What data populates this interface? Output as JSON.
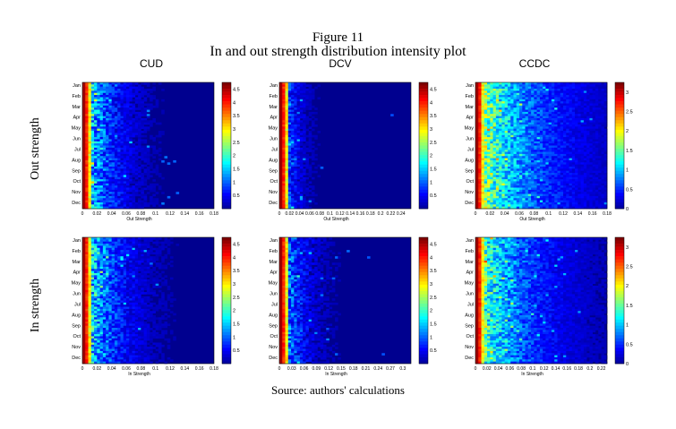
{
  "figure": {
    "number": "Figure 11",
    "caption": "In and out strength distribution intensity plot",
    "source": "Source: authors' calculations"
  },
  "columns": [
    "CUD",
    "DCV",
    "CCDC"
  ],
  "rows": [
    "Out strength",
    "In strength"
  ],
  "chart_data": [
    {
      "type": "heatmap",
      "title": "CUD",
      "row": "Out strength",
      "xlabel": "Out Strength",
      "y_categories": [
        "Jan",
        "Feb",
        "Mar",
        "Apr",
        "May",
        "Jun",
        "Jul",
        "Aug",
        "Sep",
        "Oct",
        "Nov",
        "Dec"
      ],
      "xlim": [
        0,
        0.18
      ],
      "x_ticks": [
        "0",
        "0.02",
        "0.04",
        "0.06",
        "0.08",
        "0.1",
        "0.12",
        "0.14",
        "0.16",
        "0.18"
      ],
      "colorbar": {
        "range": [
          0,
          4.75
        ],
        "ticks": [
          "4.5",
          "4",
          "3.5",
          "3",
          "2.5",
          "2",
          "1.5",
          "1",
          "0.5"
        ]
      },
      "colormap": [
        "#00008f",
        "#0000ff",
        "#0080ff",
        "#00ffff",
        "#80ff80",
        "#ffff00",
        "#ff8000",
        "#ff0000",
        "#800000"
      ]
    },
    {
      "type": "heatmap",
      "title": "DCV",
      "row": "Out strength",
      "xlabel": "Out Strength",
      "y_categories": [
        "Jan",
        "Feb",
        "Mar",
        "Apr",
        "May",
        "Jun",
        "Jul",
        "Aug",
        "Sep",
        "Oct",
        "Nov",
        "Dec"
      ],
      "xlim": [
        0,
        0.26
      ],
      "x_ticks": [
        "0",
        "0.02",
        "0.04",
        "0.06",
        "0.08",
        "0.1",
        "0.12",
        "0.14",
        "0.16",
        "0.18",
        "0.2",
        "0.22",
        "0.24"
      ],
      "colorbar": {
        "range": [
          0,
          4.75
        ],
        "ticks": [
          "4.5",
          "4",
          "3.5",
          "3",
          "2.5",
          "2",
          "1.5",
          "1",
          "0.5"
        ]
      },
      "colormap": [
        "#00008f",
        "#0000ff",
        "#0080ff",
        "#00ffff",
        "#80ff80",
        "#ffff00",
        "#ff8000",
        "#ff0000",
        "#800000"
      ]
    },
    {
      "type": "heatmap",
      "title": "CCDC",
      "row": "Out strength",
      "xlabel": "Out Strength",
      "y_categories": [
        "Jan",
        "Feb",
        "Mar",
        "Apr",
        "May",
        "Jun",
        "Jul",
        "Aug",
        "Sep",
        "Oct",
        "Nov",
        "Dec"
      ],
      "xlim": [
        0,
        0.18
      ],
      "x_ticks": [
        "0",
        "0.02",
        "0.04",
        "0.06",
        "0.08",
        "0.1",
        "0.12",
        "0.14",
        "0.16",
        "0.18"
      ],
      "colorbar": {
        "range": [
          0,
          3.25
        ],
        "ticks": [
          "3",
          "2.5",
          "2",
          "1.5",
          "1",
          "0.5",
          "0"
        ]
      },
      "colormap": [
        "#00008f",
        "#0000ff",
        "#0080ff",
        "#00ffff",
        "#80ff80",
        "#ffff00",
        "#ff8000",
        "#ff0000",
        "#800000"
      ]
    },
    {
      "type": "heatmap",
      "title": "CUD",
      "row": "In strength",
      "xlabel": "In Strength",
      "y_categories": [
        "Jan",
        "Feb",
        "Mar",
        "Apr",
        "May",
        "Jun",
        "Jul",
        "Aug",
        "Sep",
        "Oct",
        "Nov",
        "Dec"
      ],
      "xlim": [
        0,
        0.18
      ],
      "x_ticks": [
        "0",
        "0.02",
        "0.04",
        "0.06",
        "0.08",
        "0.1",
        "0.12",
        "0.14",
        "0.16",
        "0.18"
      ],
      "colorbar": {
        "range": [
          0,
          4.75
        ],
        "ticks": [
          "4.5",
          "4",
          "3.5",
          "3",
          "2.5",
          "2",
          "1.5",
          "1",
          "0.5"
        ]
      },
      "colormap": [
        "#00008f",
        "#0000ff",
        "#0080ff",
        "#00ffff",
        "#80ff80",
        "#ffff00",
        "#ff8000",
        "#ff0000",
        "#800000"
      ]
    },
    {
      "type": "heatmap",
      "title": "DCV",
      "row": "In strength",
      "xlabel": "In Strength",
      "y_categories": [
        "Jan",
        "Feb",
        "Mar",
        "Apr",
        "May",
        "Jun",
        "Jul",
        "Aug",
        "Sep",
        "Oct",
        "Nov",
        "Dec"
      ],
      "xlim": [
        0,
        0.32
      ],
      "x_ticks": [
        "0",
        "0.03",
        "0.06",
        "0.09",
        "0.12",
        "0.15",
        "0.18",
        "0.21",
        "0.24",
        "0.27",
        "0.3"
      ],
      "colorbar": {
        "range": [
          0,
          4.75
        ],
        "ticks": [
          "4.5",
          "4",
          "3.5",
          "3",
          "2.5",
          "2",
          "1.5",
          "1",
          "0.5"
        ]
      },
      "colormap": [
        "#00008f",
        "#0000ff",
        "#0080ff",
        "#00ffff",
        "#80ff80",
        "#ffff00",
        "#ff8000",
        "#ff0000",
        "#800000"
      ]
    },
    {
      "type": "heatmap",
      "title": "CCDC",
      "row": "In strength",
      "xlabel": "In Strength",
      "y_categories": [
        "Jan",
        "Feb",
        "Mar",
        "Apr",
        "May",
        "Jun",
        "Jul",
        "Aug",
        "Sep",
        "Oct",
        "Nov",
        "Dec"
      ],
      "xlim": [
        0,
        0.23
      ],
      "x_ticks": [
        "0",
        "0.02",
        "0.04",
        "0.06",
        "0.08",
        "0.1",
        "0.12",
        "0.14",
        "0.16",
        "0.18",
        "0.2",
        "0.22"
      ],
      "colorbar": {
        "range": [
          0,
          3.25
        ],
        "ticks": [
          "3",
          "2.5",
          "2",
          "1.5",
          "1",
          "0.5",
          "0"
        ]
      },
      "colormap": [
        "#00008f",
        "#0000ff",
        "#0080ff",
        "#00ffff",
        "#80ff80",
        "#ffff00",
        "#ff8000",
        "#ff0000",
        "#800000"
      ]
    }
  ]
}
